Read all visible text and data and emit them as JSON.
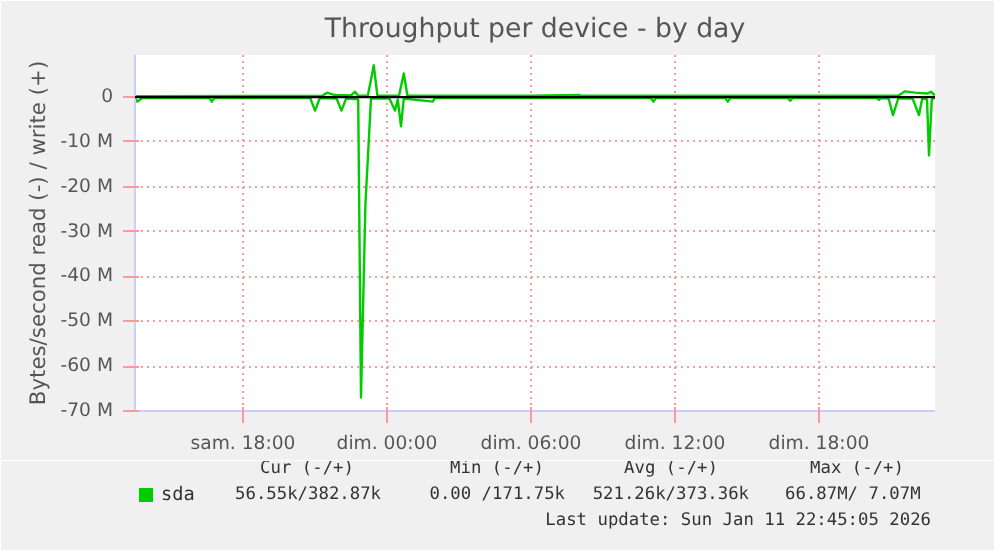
{
  "chart_data": {
    "type": "line",
    "title": "Throughput per device - by day",
    "ylabel": "Bytes/second read (-) / write (+)",
    "xlim": [
      "2026-01-10T13:30",
      "2026-01-11T22:50"
    ],
    "xticks": [
      {
        "value": "2026-01-10T18:00",
        "label": "sam. 18:00"
      },
      {
        "value": "2026-01-11T00:00",
        "label": "dim. 00:00"
      },
      {
        "value": "2026-01-11T06:00",
        "label": "dim. 06:00"
      },
      {
        "value": "2026-01-11T12:00",
        "label": "dim. 12:00"
      },
      {
        "value": "2026-01-11T18:00",
        "label": "dim. 18:00"
      }
    ],
    "ylim": [
      -70,
      9.4
    ],
    "yticks": [
      {
        "value": 0,
        "label": "0"
      },
      {
        "value": -10,
        "label": "-10 M"
      },
      {
        "value": -20,
        "label": "-20 M"
      },
      {
        "value": -30,
        "label": "-30 M"
      },
      {
        "value": -40,
        "label": "-40 M"
      },
      {
        "value": -50,
        "label": "-50 M"
      },
      {
        "value": -60,
        "label": "-60 M"
      },
      {
        "value": -70,
        "label": "-70 M"
      }
    ],
    "grid": true,
    "legend": "bottom left",
    "marker": "none",
    "line_style": "solid",
    "ref_lines": [
      {
        "axis": "y",
        "value": 0,
        "color": "#000000"
      }
    ],
    "series": [
      {
        "name": "sda",
        "color": "#00cc00",
        "x": [
          "2026-01-10T13:30",
          "2026-01-10T13:36",
          "2026-01-10T13:48",
          "2026-01-10T16:36",
          "2026-01-10T16:42",
          "2026-01-10T16:48",
          "2026-01-10T20:48",
          "2026-01-10T21:00",
          "2026-01-10T21:12",
          "2026-01-10T21:54",
          "2026-01-10T22:06",
          "2026-01-10T22:18",
          "2026-01-10T22:48",
          "2026-01-10T22:55",
          "2026-01-10T23:06",
          "2026-01-10T23:20",
          "2026-01-11T00:06",
          "2026-01-11T00:20",
          "2026-01-11T00:27",
          "2026-01-11T00:35",
          "2026-01-11T00:42",
          "2026-01-11T01:54",
          "2026-01-11T02:00",
          "2026-01-11T11:00",
          "2026-01-11T11:06",
          "2026-01-11T11:12",
          "2026-01-11T14:06",
          "2026-01-11T14:12",
          "2026-01-11T14:18",
          "2026-01-11T16:42",
          "2026-01-11T16:48",
          "2026-01-11T16:54",
          "2026-01-11T20:24",
          "2026-01-11T20:30",
          "2026-01-11T20:36",
          "2026-01-11T20:54",
          "2026-01-11T21:05",
          "2026-01-11T21:18",
          "2026-01-11T21:54",
          "2026-01-11T22:10",
          "2026-01-11T22:18",
          "2026-01-11T22:30",
          "2026-01-11T22:35",
          "2026-01-11T22:42",
          "2026-01-11T22:50"
        ],
        "values": [
          -0.3,
          -1.0,
          -0.2,
          -0.2,
          -1.0,
          -0.2,
          -0.2,
          -3.0,
          -0.2,
          -0.3,
          -3.0,
          -0.3,
          -0.5,
          -67,
          -24,
          -0.3,
          -0.3,
          -3,
          -0.5,
          -6.5,
          -0.3,
          -1,
          -0.2,
          -0.2,
          -1,
          -0.2,
          -0.2,
          -1,
          -0.2,
          -0.2,
          -0.8,
          -0.2,
          -0.2,
          -0.6,
          -0.2,
          -0.3,
          -4,
          -0.3,
          -0.3,
          -4,
          -0.3,
          -0.5,
          -13,
          -0.5,
          -0.1
        ]
      },
      {
        "color": "#00cc00",
        "x": [
          "2026-01-10T13:30",
          "2026-01-10T21:18",
          "2026-01-10T21:30",
          "2026-01-10T21:48",
          "2026-01-10T22:30",
          "2026-01-10T22:40",
          "2026-01-10T22:48",
          "2026-01-10T23:12",
          "2026-01-10T23:27",
          "2026-01-10T23:36",
          "2026-01-11T00:30",
          "2026-01-11T00:42",
          "2026-01-11T00:51",
          "2026-01-11T06:00",
          "2026-01-11T08:00",
          "2026-01-11T08:06",
          "2026-01-11T21:18",
          "2026-01-11T21:35",
          "2026-01-11T22:00",
          "2026-01-11T22:30",
          "2026-01-11T22:40",
          "2026-01-11T22:50"
        ],
        "values": [
          0.2,
          0.3,
          1.0,
          0.5,
          0.4,
          1.2,
          0.3,
          0.3,
          7.1,
          0.3,
          0.3,
          5.3,
          0.3,
          0.3,
          0.5,
          0.3,
          0.3,
          1.3,
          1.0,
          0.8,
          1.2,
          0.4
        ]
      }
    ],
    "annotations": [
      "Cur (-/+)",
      "Min (-/+)",
      "Avg (-/+)",
      "Max (-/+)",
      "56.55k/382.87k",
      "0.00 /171.75k",
      "521.26k/373.36k",
      "66.87M/  7.07M",
      "Last update: Sun Jan 11 22:45:05 2026"
    ]
  }
}
